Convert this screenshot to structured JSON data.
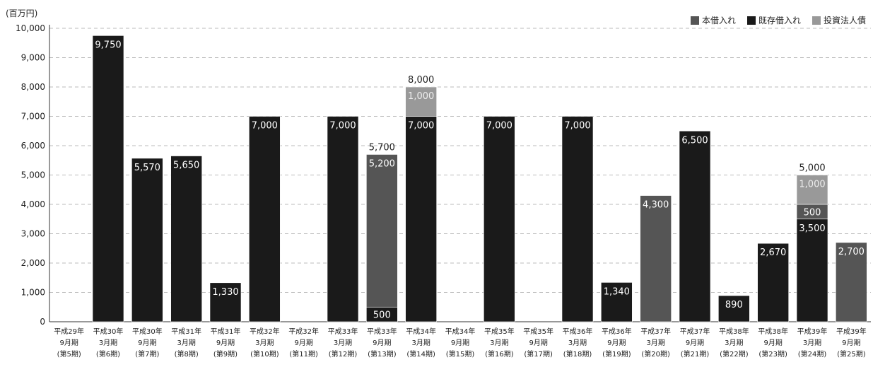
{
  "chart_data": {
    "type": "bar",
    "stacked": true,
    "unit_label": "(百万円)",
    "title": "",
    "xlabel": "",
    "ylabel": "",
    "ylim": [
      0,
      10000
    ],
    "yticks": [
      "0",
      "1,000",
      "2,000",
      "3,000",
      "4,000",
      "5,000",
      "6,000",
      "7,000",
      "8,000",
      "9,000",
      "10,000"
    ],
    "grid": "dashed-horizontal",
    "legend_position": "top-right",
    "categories": [
      {
        "l1": "平成29年",
        "l2": "9月期",
        "l3": "(第5期)"
      },
      {
        "l1": "平成30年",
        "l2": "3月期",
        "l3": "(第6期)"
      },
      {
        "l1": "平成30年",
        "l2": "9月期",
        "l3": "(第7期)"
      },
      {
        "l1": "平成31年",
        "l2": "3月期",
        "l3": "(第8期)"
      },
      {
        "l1": "平成31年",
        "l2": "9月期",
        "l3": "(第9期)"
      },
      {
        "l1": "平成32年",
        "l2": "3月期",
        "l3": "(第10期)"
      },
      {
        "l1": "平成32年",
        "l2": "9月期",
        "l3": "(第11期)"
      },
      {
        "l1": "平成33年",
        "l2": "3月期",
        "l3": "(第12期)"
      },
      {
        "l1": "平成33年",
        "l2": "9月期",
        "l3": "(第13期)"
      },
      {
        "l1": "平成34年",
        "l2": "3月期",
        "l3": "(第14期)"
      },
      {
        "l1": "平成34年",
        "l2": "9月期",
        "l3": "(第15期)"
      },
      {
        "l1": "平成35年",
        "l2": "3月期",
        "l3": "(第16期)"
      },
      {
        "l1": "平成35年",
        "l2": "9月期",
        "l3": "(第17期)"
      },
      {
        "l1": "平成36年",
        "l2": "3月期",
        "l3": "(第18期)"
      },
      {
        "l1": "平成36年",
        "l2": "9月期",
        "l3": "(第19期)"
      },
      {
        "l1": "平成37年",
        "l2": "3月期",
        "l3": "(第20期)"
      },
      {
        "l1": "平成37年",
        "l2": "9月期",
        "l3": "(第21期)"
      },
      {
        "l1": "平成38年",
        "l2": "3月期",
        "l3": "(第22期)"
      },
      {
        "l1": "平成38年",
        "l2": "9月期",
        "l3": "(第23期)"
      },
      {
        "l1": "平成39年",
        "l2": "3月期",
        "l3": "(第24期)"
      },
      {
        "l1": "平成39年",
        "l2": "9月期",
        "l3": "(第25期)"
      }
    ],
    "stack_order": [
      "既存借入れ",
      "本借入れ",
      "投資法人債"
    ],
    "series": [
      {
        "name": "本借入れ",
        "color": "#555555",
        "values": [
          0,
          0,
          0,
          0,
          0,
          0,
          0,
          0,
          5200,
          0,
          0,
          0,
          0,
          0,
          0,
          4300,
          0,
          0,
          0,
          500,
          2700
        ]
      },
      {
        "name": "既存借入れ",
        "color": "#1a1a1a",
        "values": [
          0,
          9750,
          5570,
          5650,
          1330,
          7000,
          0,
          7000,
          500,
          7000,
          0,
          7000,
          0,
          7000,
          1340,
          0,
          6500,
          890,
          2670,
          3500,
          0
        ]
      },
      {
        "name": "投資法人債",
        "color": "#999999",
        "values": [
          0,
          0,
          0,
          0,
          0,
          0,
          0,
          0,
          0,
          1000,
          0,
          0,
          0,
          0,
          0,
          0,
          0,
          0,
          0,
          1000,
          0
        ]
      }
    ],
    "totals": [
      {
        "index": 8,
        "label": "5,700"
      },
      {
        "index": 9,
        "label": "8,000"
      },
      {
        "index": 19,
        "label": "5,000"
      }
    ]
  }
}
